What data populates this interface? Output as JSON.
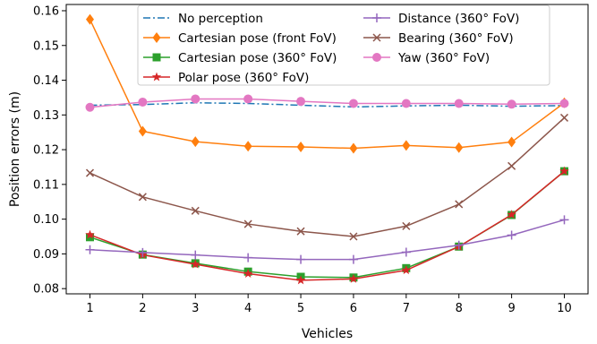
{
  "chart_data": {
    "type": "line",
    "title": "",
    "xlabel": "Vehicles",
    "ylabel": "Position errors (m)",
    "x": [
      1,
      2,
      3,
      4,
      5,
      6,
      7,
      8,
      9,
      10
    ],
    "xlim": [
      0.55,
      10.45
    ],
    "ylim": [
      0.0785,
      0.1618
    ],
    "yticks": [
      0.08,
      0.09,
      0.1,
      0.11,
      0.12,
      0.13,
      0.14,
      0.15,
      0.16
    ],
    "ytick_labels": [
      "0.08",
      "0.09",
      "0.10",
      "0.11",
      "0.12",
      "0.13",
      "0.14",
      "0.15",
      "0.16"
    ],
    "xticks": [
      1,
      2,
      3,
      4,
      5,
      6,
      7,
      8,
      9,
      10
    ],
    "xtick_labels": [
      "1",
      "2",
      "3",
      "4",
      "5",
      "6",
      "7",
      "8",
      "9",
      "10"
    ],
    "grid": false,
    "legend_position": "top-center",
    "series": [
      {
        "name": "No perception",
        "color": "#1f77b4",
        "marker": "none",
        "dash": "dashdot",
        "values": [
          0.1328,
          0.133,
          0.1335,
          0.1333,
          0.1328,
          0.1323,
          0.1326,
          0.1328,
          0.1325,
          0.1327
        ]
      },
      {
        "name": "Cartesian pose (front FoV)",
        "color": "#ff7f0e",
        "marker": "diamond",
        "dash": "solid",
        "values": [
          0.1575,
          0.1253,
          0.1223,
          0.121,
          0.1208,
          0.1204,
          0.1212,
          0.1206,
          0.1222,
          0.1335
        ]
      },
      {
        "name": "Cartesian pose (360° FoV)",
        "color": "#2ca02c",
        "marker": "square",
        "dash": "solid",
        "values": [
          0.0948,
          0.0898,
          0.0873,
          0.0849,
          0.0834,
          0.0832,
          0.0859,
          0.0921,
          0.1012,
          0.1138
        ]
      },
      {
        "name": "Polar pose (360° FoV)",
        "color": "#d62728",
        "marker": "star",
        "dash": "solid",
        "values": [
          0.0955,
          0.0897,
          0.087,
          0.0843,
          0.0824,
          0.0828,
          0.0853,
          0.0921,
          0.1013,
          0.1138
        ]
      },
      {
        "name": "Distance (360° FoV)",
        "color": "#9467bd",
        "marker": "plus",
        "dash": "solid",
        "values": [
          0.0912,
          0.0904,
          0.0897,
          0.0889,
          0.0884,
          0.0884,
          0.0905,
          0.0925,
          0.0954,
          0.0998
        ]
      },
      {
        "name": "Bearing (360° FoV)",
        "color": "#8c564b",
        "marker": "x",
        "dash": "solid",
        "values": [
          0.1133,
          0.1064,
          0.1024,
          0.0986,
          0.0965,
          0.095,
          0.098,
          0.1043,
          0.1153,
          0.1292
        ]
      },
      {
        "name": "Yaw (360° FoV)",
        "color": "#e377c2",
        "marker": "circle",
        "dash": "solid",
        "values": [
          0.1322,
          0.1337,
          0.1346,
          0.1346,
          0.1339,
          0.1333,
          0.1333,
          0.1333,
          0.1331,
          0.1333
        ]
      }
    ]
  }
}
